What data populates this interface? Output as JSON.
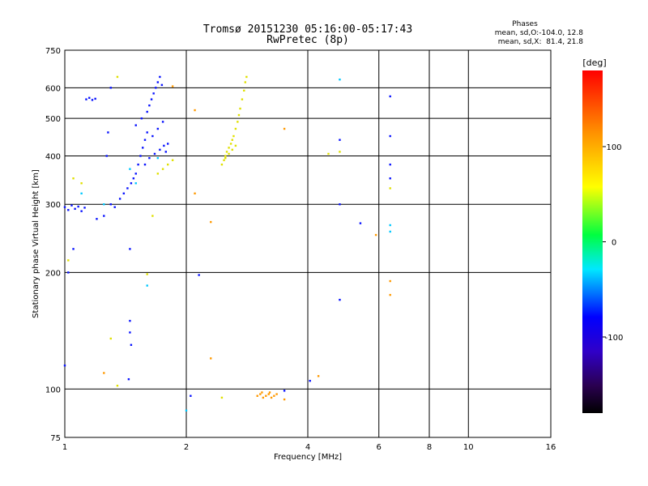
{
  "chart_data": {
    "type": "scatter",
    "title_line1": "Tromsø 20151230 05:16:00-05:17:43",
    "title_line2": "RwPretec (8p)",
    "phases_header": "Phases",
    "phases_line1": "mean, sd,O:-104.0, 12.8",
    "phases_line2": "mean, sd,X:  81.4, 21.8",
    "xlabel": "Frequency [MHz]",
    "ylabel": "Stationary phase Virtual Height [km]",
    "x_scale": "log",
    "y_scale": "log",
    "xlim": [
      1,
      16
    ],
    "ylim": [
      75,
      750
    ],
    "x_ticks": [
      1,
      2,
      4,
      6,
      8,
      10,
      16
    ],
    "x_tick_labels": [
      "1",
      "2",
      "4",
      "6",
      "8",
      "10",
      "16"
    ],
    "y_ticks": [
      75,
      100,
      200,
      300,
      400,
      500,
      600,
      750
    ],
    "y_tick_labels": [
      "75",
      "100",
      "200",
      "300",
      "400",
      "500",
      "600",
      "750"
    ],
    "grid": true,
    "colorbar": {
      "label": "[deg]",
      "range": [
        -180,
        180
      ],
      "ticks": [
        100,
        0,
        -100
      ],
      "tick_labels": [
        "100",
        "0",
        "-100"
      ]
    },
    "colors": {
      "o_mode": "#0a14ff",
      "x_mode": "#e0e000",
      "x_mode_low": "#ff9900"
    },
    "series": [
      {
        "points": [
          [
            1.0,
            295
          ],
          [
            1.02,
            290
          ],
          [
            1.04,
            298
          ],
          [
            1.06,
            292
          ],
          [
            1.08,
            296
          ],
          [
            1.1,
            288
          ],
          [
            1.12,
            294
          ],
          [
            1.13,
            560
          ],
          [
            1.15,
            565
          ],
          [
            1.17,
            558
          ],
          [
            1.19,
            562
          ],
          [
            1.2,
            275
          ],
          [
            1.25,
            280
          ],
          [
            1.3,
            300
          ],
          [
            1.33,
            295
          ],
          [
            1.37,
            310
          ],
          [
            1.4,
            320
          ],
          [
            1.43,
            330
          ],
          [
            1.46,
            340
          ],
          [
            1.48,
            350
          ],
          [
            1.5,
            360
          ],
          [
            1.52,
            380
          ],
          [
            1.54,
            400
          ],
          [
            1.56,
            420
          ],
          [
            1.58,
            440
          ],
          [
            1.6,
            460
          ],
          [
            1.5,
            480
          ],
          [
            1.55,
            500
          ],
          [
            1.6,
            520
          ],
          [
            1.62,
            540
          ],
          [
            1.64,
            560
          ],
          [
            1.66,
            580
          ],
          [
            1.68,
            600
          ],
          [
            1.7,
            620
          ],
          [
            1.72,
            640
          ],
          [
            1.74,
            610
          ],
          [
            1.65,
            450
          ],
          [
            1.7,
            470
          ],
          [
            1.75,
            490
          ],
          [
            1.8,
            430
          ],
          [
            1.78,
            410
          ],
          [
            1.58,
            380
          ],
          [
            1.62,
            395
          ],
          [
            1.67,
            405
          ],
          [
            1.72,
            415
          ],
          [
            1.76,
            425
          ],
          [
            1.45,
            150
          ],
          [
            1.45,
            140
          ],
          [
            1.46,
            130
          ],
          [
            1.44,
            106
          ],
          [
            1.3,
            600
          ],
          [
            1.28,
            460
          ],
          [
            1.27,
            400
          ],
          [
            1.02,
            200
          ],
          [
            1.0,
            115
          ],
          [
            1.05,
            230
          ],
          [
            1.45,
            230
          ],
          [
            2.05,
            96
          ],
          [
            2.15,
            197
          ],
          [
            3.5,
            99
          ],
          [
            4.05,
            105
          ],
          [
            4.8,
            170
          ],
          [
            4.8,
            440
          ],
          [
            4.8,
            300
          ],
          [
            5.4,
            268
          ],
          [
            6.4,
            570
          ],
          [
            6.4,
            450
          ],
          [
            6.4,
            380
          ],
          [
            6.4,
            350
          ]
        ]
      },
      {
        "points": [
          [
            2.45,
            380
          ],
          [
            2.48,
            390
          ],
          [
            2.5,
            400
          ],
          [
            2.52,
            410
          ],
          [
            2.55,
            420
          ],
          [
            2.58,
            430
          ],
          [
            2.6,
            440
          ],
          [
            2.62,
            450
          ],
          [
            2.65,
            470
          ],
          [
            2.68,
            490
          ],
          [
            2.7,
            510
          ],
          [
            2.72,
            530
          ],
          [
            2.75,
            560
          ],
          [
            2.78,
            590
          ],
          [
            2.8,
            620
          ],
          [
            2.82,
            640
          ],
          [
            2.5,
            395
          ],
          [
            2.55,
            405
          ],
          [
            2.6,
            415
          ],
          [
            2.65,
            425
          ],
          [
            1.7,
            360
          ],
          [
            1.75,
            370
          ],
          [
            1.8,
            380
          ],
          [
            1.85,
            390
          ],
          [
            1.05,
            350
          ],
          [
            1.1,
            340
          ],
          [
            1.35,
            640
          ],
          [
            1.65,
            280
          ],
          [
            1.3,
            135
          ],
          [
            1.35,
            102
          ],
          [
            1.6,
            198
          ],
          [
            2.45,
            95
          ],
          [
            4.5,
            405
          ],
          [
            4.8,
            410
          ],
          [
            6.4,
            330
          ],
          [
            1.02,
            215
          ]
        ]
      },
      {
        "points": [
          [
            3.0,
            96
          ],
          [
            3.05,
            97
          ],
          [
            3.1,
            95
          ],
          [
            3.15,
            96
          ],
          [
            3.2,
            97
          ],
          [
            3.25,
            95
          ],
          [
            3.3,
            96
          ],
          [
            3.35,
            97
          ],
          [
            3.08,
            98
          ],
          [
            3.22,
            98
          ],
          [
            3.5,
            94
          ],
          [
            3.5,
            470
          ],
          [
            2.3,
            270
          ],
          [
            2.3,
            120
          ],
          [
            2.1,
            320
          ],
          [
            2.1,
            525
          ],
          [
            1.85,
            605
          ],
          [
            1.25,
            110
          ],
          [
            5.9,
            250
          ],
          [
            6.4,
            190
          ],
          [
            6.4,
            175
          ],
          [
            4.25,
            108
          ]
        ]
      },
      {
        "points": [
          [
            1.6,
            185
          ],
          [
            1.5,
            340
          ],
          [
            1.7,
            395
          ],
          [
            1.1,
            320
          ],
          [
            1.25,
            300
          ],
          [
            2.0,
            88
          ],
          [
            4.8,
            630
          ],
          [
            6.4,
            265
          ],
          [
            6.4,
            255
          ],
          [
            1.45,
            370
          ]
        ]
      }
    ]
  }
}
